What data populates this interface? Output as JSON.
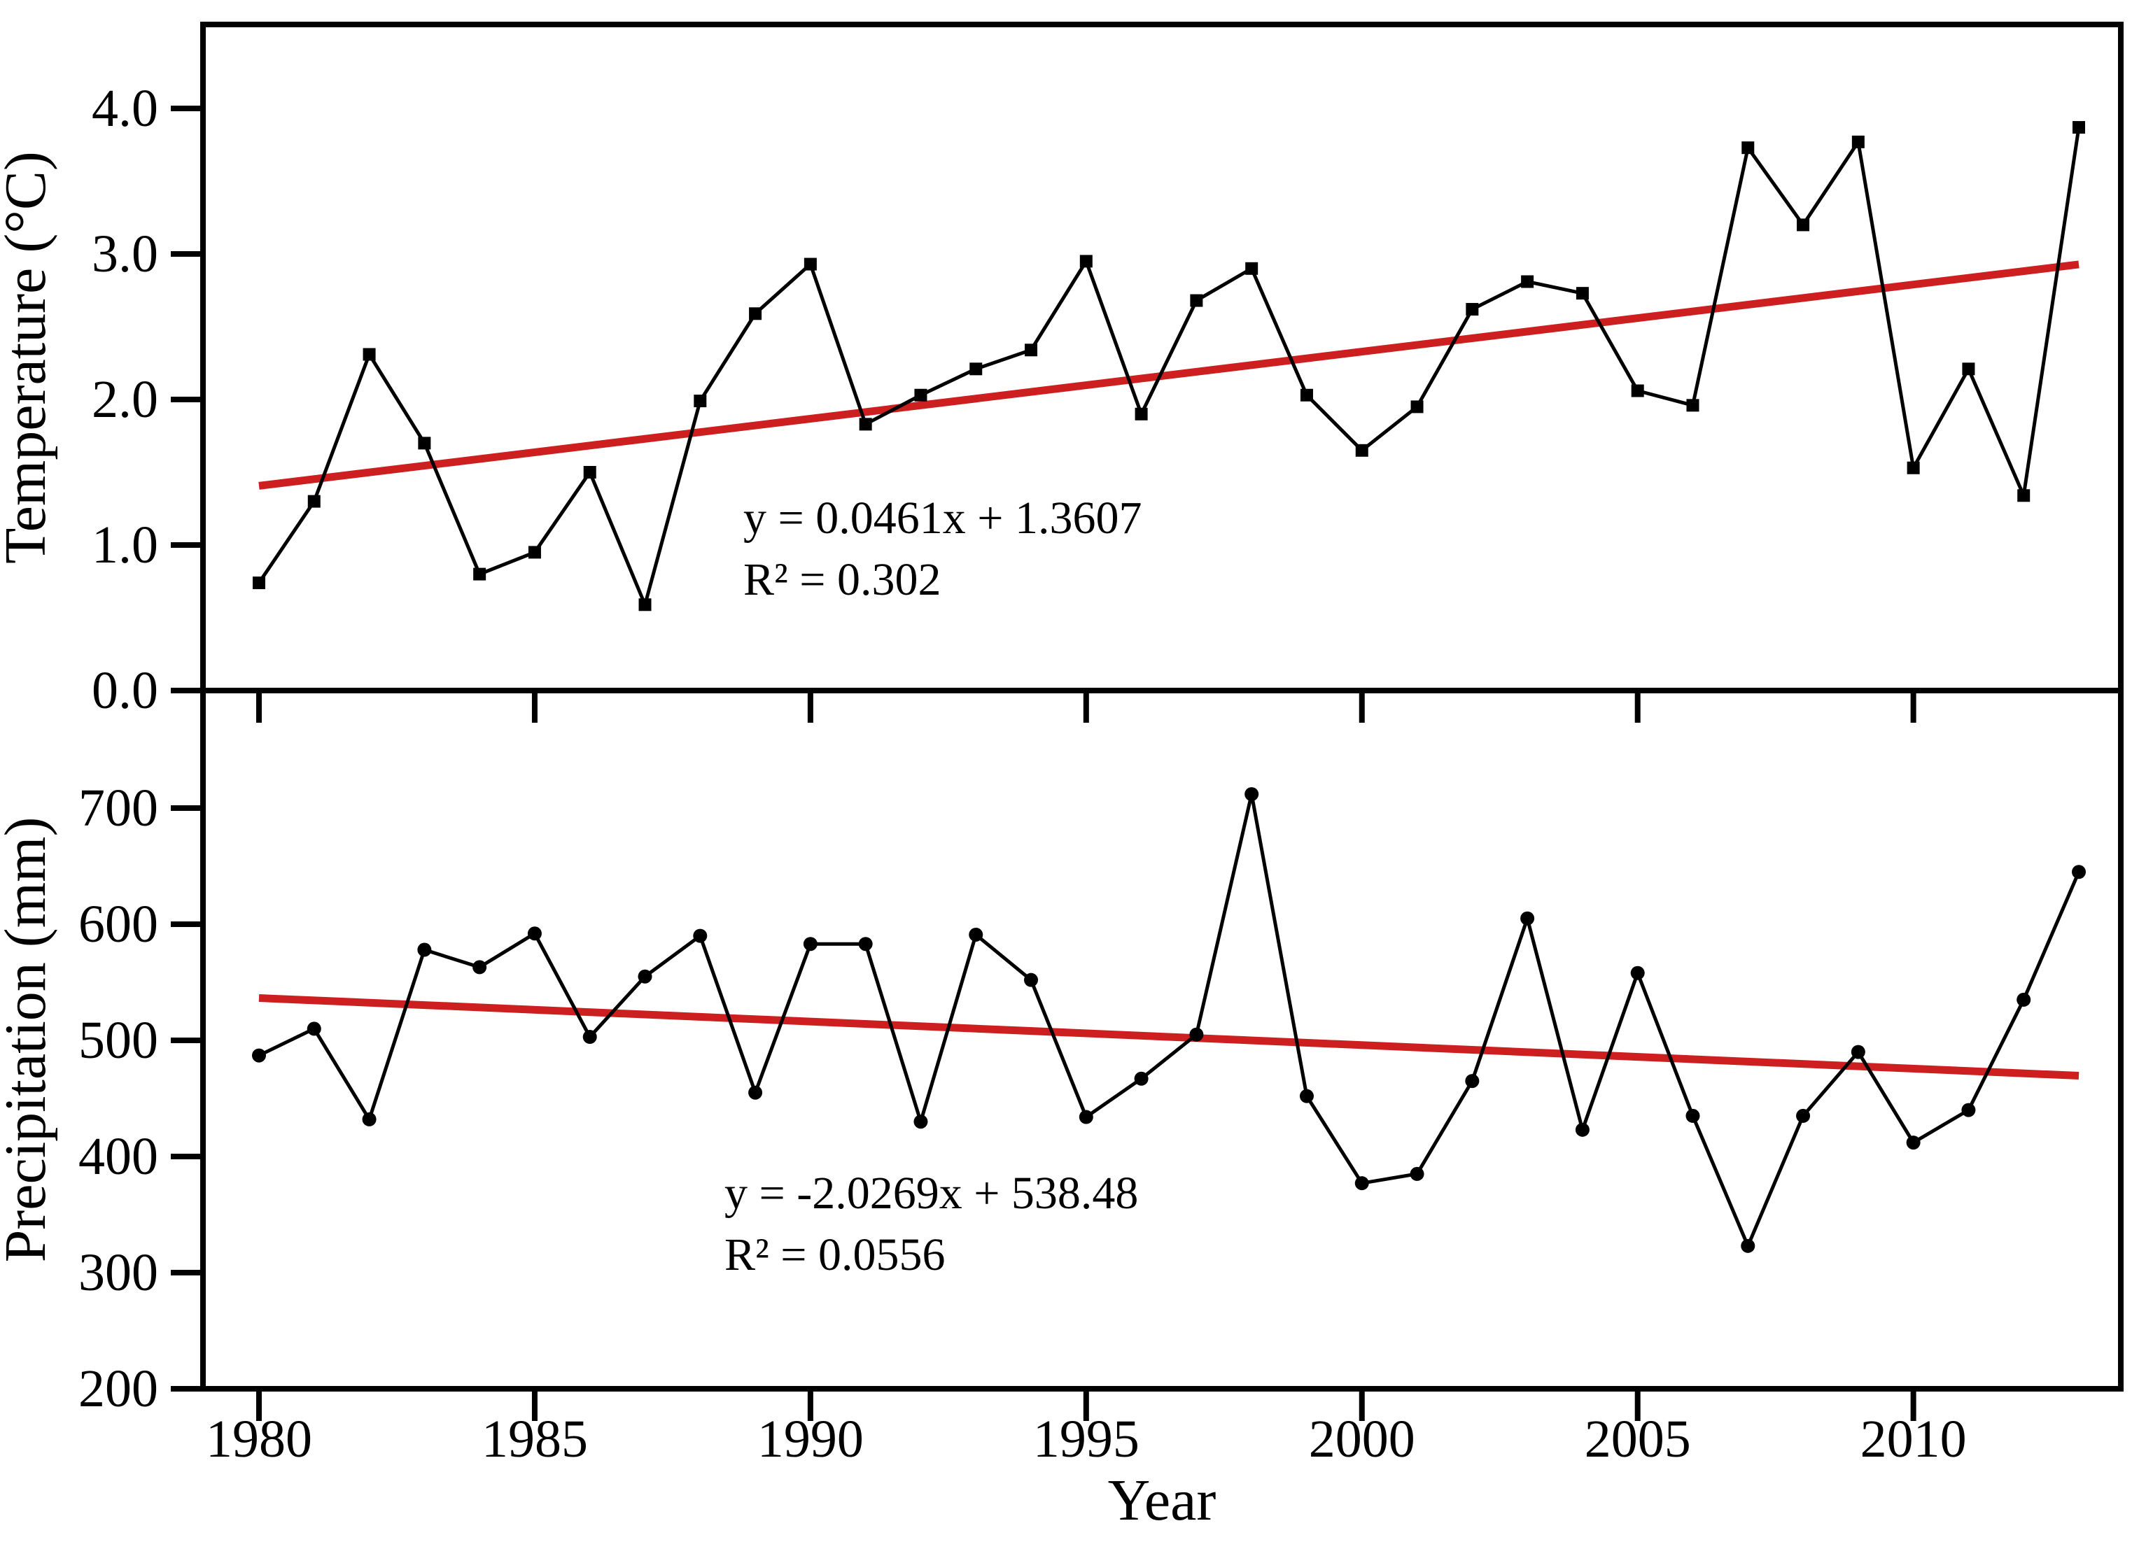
{
  "xlabel": "Year",
  "xticks": [
    1980,
    1985,
    1990,
    1995,
    2000,
    2005,
    2010
  ],
  "xtick_labels": [
    "1980",
    "1985",
    "1990",
    "1995",
    "2000",
    "2005",
    "2010"
  ],
  "colors": {
    "series": "#000000",
    "trend": "#cd1f1f",
    "background": "#ffffff"
  },
  "chart_data": [
    {
      "type": "line",
      "panel": "top",
      "ylabel": "Temperature (°C)",
      "marker": "square",
      "x": [
        1980,
        1981,
        1982,
        1983,
        1984,
        1985,
        1986,
        1987,
        1988,
        1989,
        1990,
        1991,
        1992,
        1993,
        1994,
        1995,
        1996,
        1997,
        1998,
        1999,
        2000,
        2001,
        2002,
        2003,
        2004,
        2005,
        2006,
        2007,
        2008,
        2009,
        2010,
        2011,
        2012,
        2013
      ],
      "values": [
        0.74,
        1.3,
        2.31,
        1.7,
        0.8,
        0.95,
        1.5,
        0.59,
        1.99,
        2.59,
        2.93,
        1.83,
        2.03,
        2.21,
        2.34,
        2.95,
        1.9,
        2.68,
        2.9,
        2.03,
        1.65,
        1.95,
        2.62,
        2.81,
        2.73,
        2.06,
        1.96,
        3.73,
        3.2,
        3.77,
        1.53,
        2.21,
        1.34,
        3.87
      ],
      "ylim": [
        0.0,
        4.58
      ],
      "ytick_values": [
        0.0,
        1.0,
        2.0,
        3.0,
        4.0
      ],
      "ytick_labels": [
        "0.0",
        "1.0",
        "2.0",
        "3.0",
        "4.0"
      ],
      "grid": false,
      "trend": {
        "slope": 0.0461,
        "intercept": 1.3607,
        "x_index_start": 1,
        "x_index_end": 34,
        "equation_label": "y = 0.0461x + 1.3607",
        "r2_label": "R² = 0.302"
      }
    },
    {
      "type": "line",
      "panel": "bottom",
      "ylabel": "Precipitation (mm)",
      "marker": "circle",
      "x": [
        1980,
        1981,
        1982,
        1983,
        1984,
        1985,
        1986,
        1987,
        1988,
        1989,
        1990,
        1991,
        1992,
        1993,
        1994,
        1995,
        1996,
        1997,
        1998,
        1999,
        2000,
        2001,
        2002,
        2003,
        2004,
        2005,
        2006,
        2007,
        2008,
        2009,
        2010,
        2011,
        2012,
        2013
      ],
      "values": [
        487,
        510,
        432,
        578,
        563,
        592,
        503,
        555,
        590,
        455,
        583,
        583,
        430,
        591,
        552,
        434,
        467,
        505,
        712,
        452,
        377,
        385,
        465,
        605,
        423,
        558,
        435,
        323,
        435,
        490,
        412,
        440,
        535,
        645
      ],
      "ylim": [
        200,
        800
      ],
      "ytick_values": [
        200,
        300,
        400,
        500,
        600,
        700
      ],
      "ytick_labels": [
        "200",
        "300",
        "400",
        "500",
        "600",
        "700"
      ],
      "grid": false,
      "trend": {
        "slope": -2.0269,
        "intercept": 538.48,
        "x_index_start": 1,
        "x_index_end": 34,
        "equation_label": "y = -2.0269x + 538.48",
        "r2_label": "R² = 0.0556"
      }
    }
  ]
}
